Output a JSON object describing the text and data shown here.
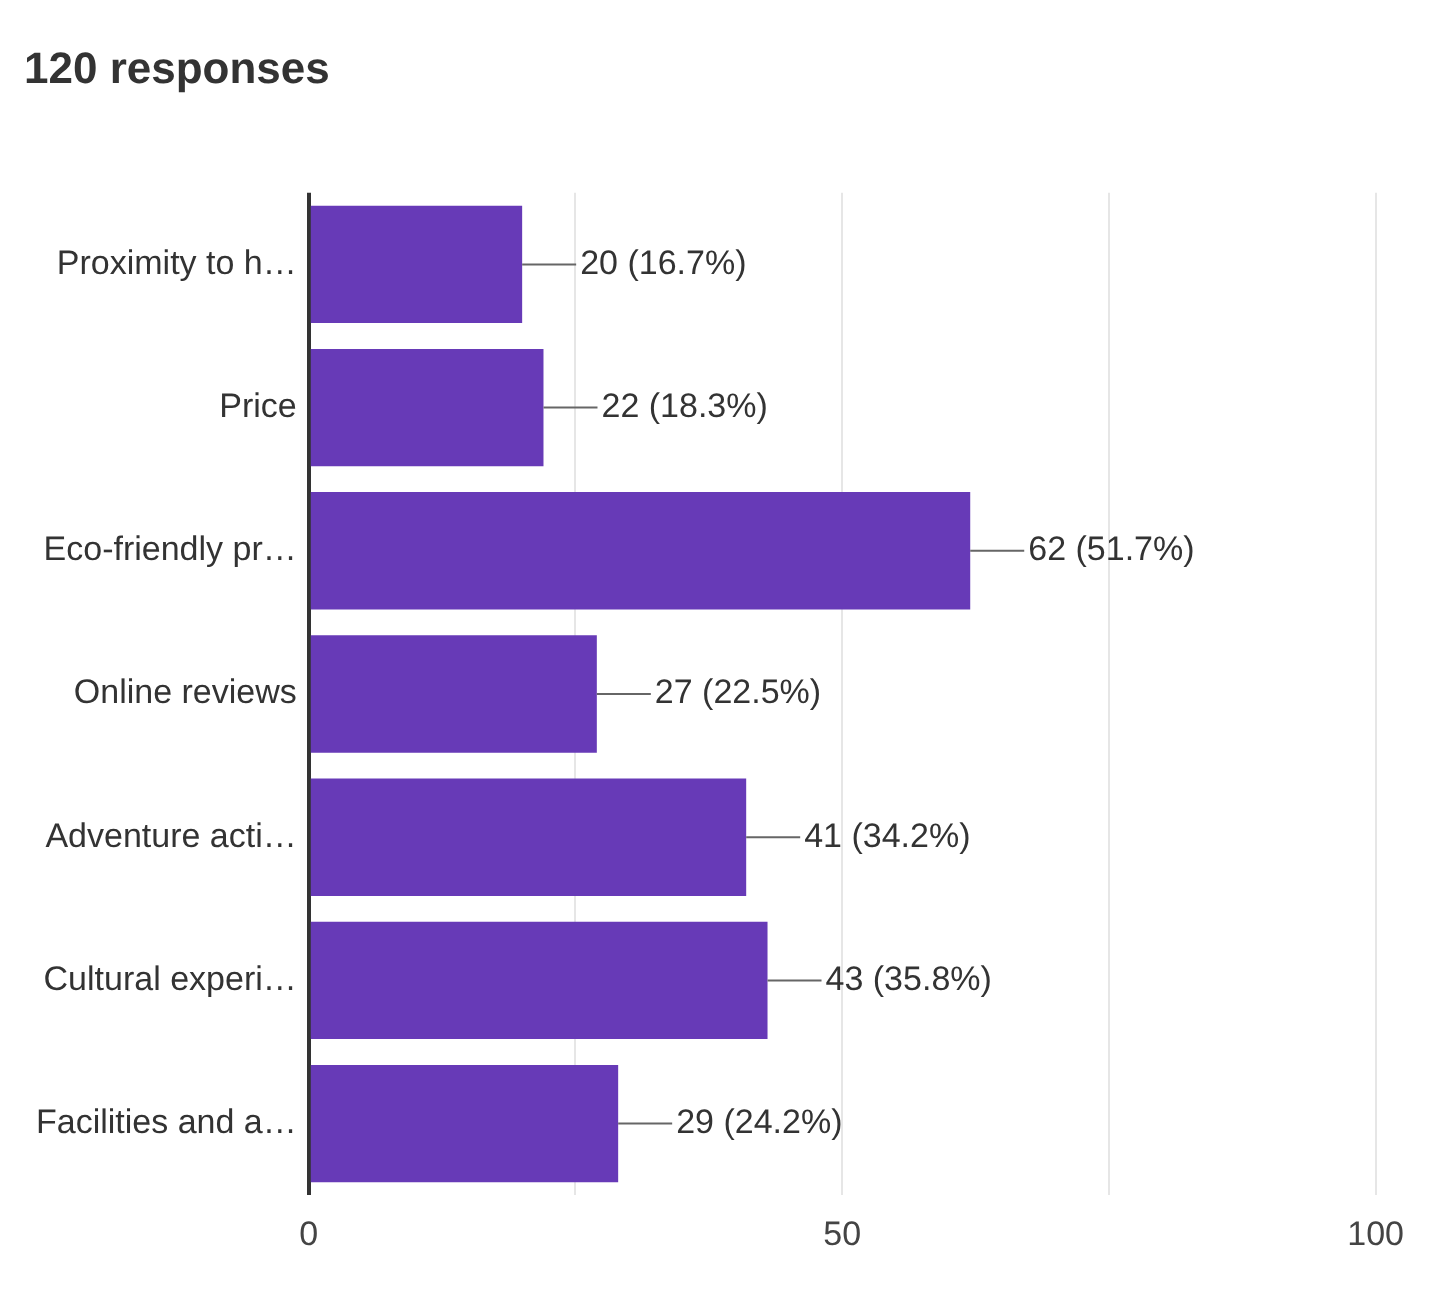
{
  "chart_data": {
    "type": "bar",
    "orientation": "horizontal",
    "title": "120 responses",
    "categories": [
      "Proximity to h…",
      "Price",
      "Eco-friendly pr…",
      "Online reviews",
      "Adventure acti…",
      "Cultural experi…",
      "Facilities and a…"
    ],
    "values": [
      20,
      22,
      62,
      27,
      41,
      43,
      29
    ],
    "value_labels": [
      "20 (16.7%)",
      "22 (18.3%)",
      "62 (51.7%)",
      "27 (22.5%)",
      "41 (34.2%)",
      "43 (35.8%)",
      "29 (24.2%)"
    ],
    "color": "#673ab7",
    "xlim": [
      0,
      100
    ],
    "xticks": [
      0,
      {
        "value": 25,
        "label": null
      },
      50,
      {
        "value": 75,
        "label": null
      },
      100
    ],
    "grid": "x",
    "legend": false
  }
}
